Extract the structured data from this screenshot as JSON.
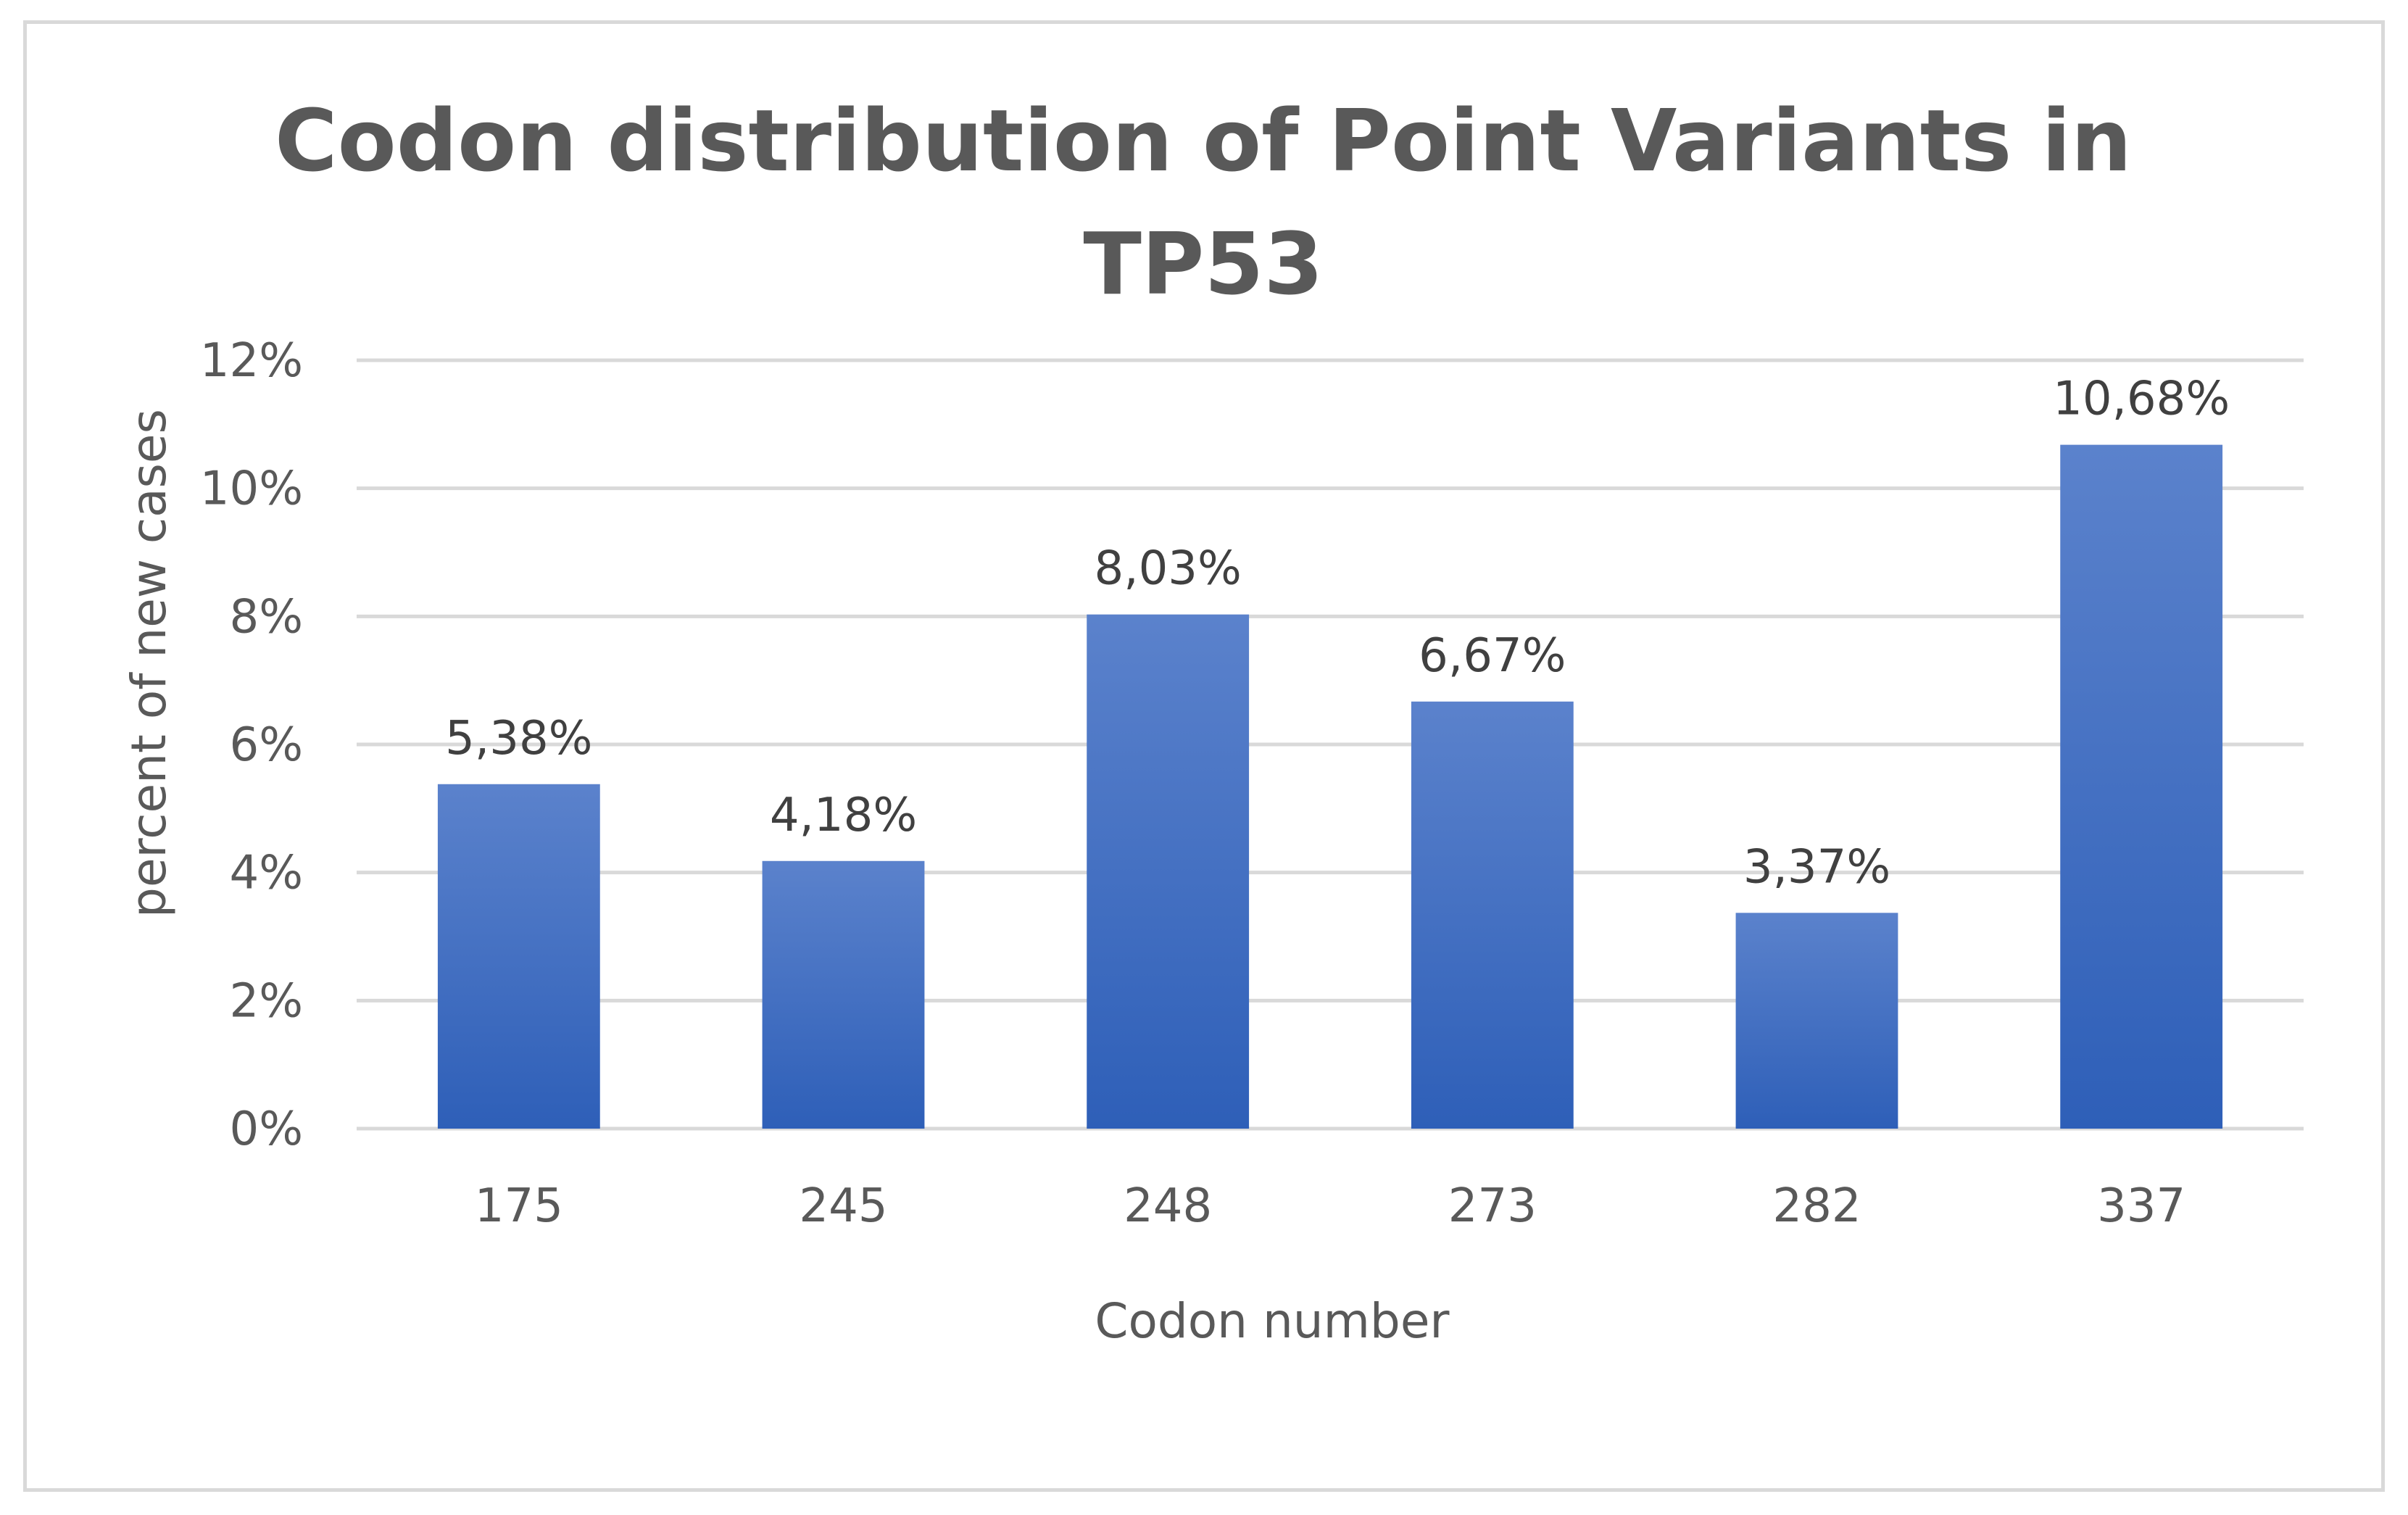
{
  "chart_data": {
    "type": "bar",
    "title_lines": [
      "Codon distribution of Point Variants in",
      "TP53"
    ],
    "xlabel": "Codon number",
    "ylabel": "percent of new cases",
    "categories": [
      "175",
      "245",
      "248",
      "273",
      "282",
      "337"
    ],
    "values": [
      5.38,
      4.18,
      8.03,
      6.67,
      3.37,
      10.68
    ],
    "data_labels": [
      "5,38%",
      "4,18%",
      "8,03%",
      "6,67%",
      "3,37%",
      "10,68%"
    ],
    "ylim": [
      0,
      12
    ],
    "y_ticks": [
      0,
      2,
      4,
      6,
      8,
      10,
      12
    ],
    "y_tick_labels": [
      "0%",
      "2%",
      "4%",
      "6%",
      "8%",
      "10%",
      "12%"
    ],
    "grid": true,
    "legend": "none",
    "colors": {
      "bar_top": "#5b82cc",
      "bar_bottom": "#2e5fb8",
      "grid": "#d9d9d9",
      "text": "#595959"
    }
  }
}
